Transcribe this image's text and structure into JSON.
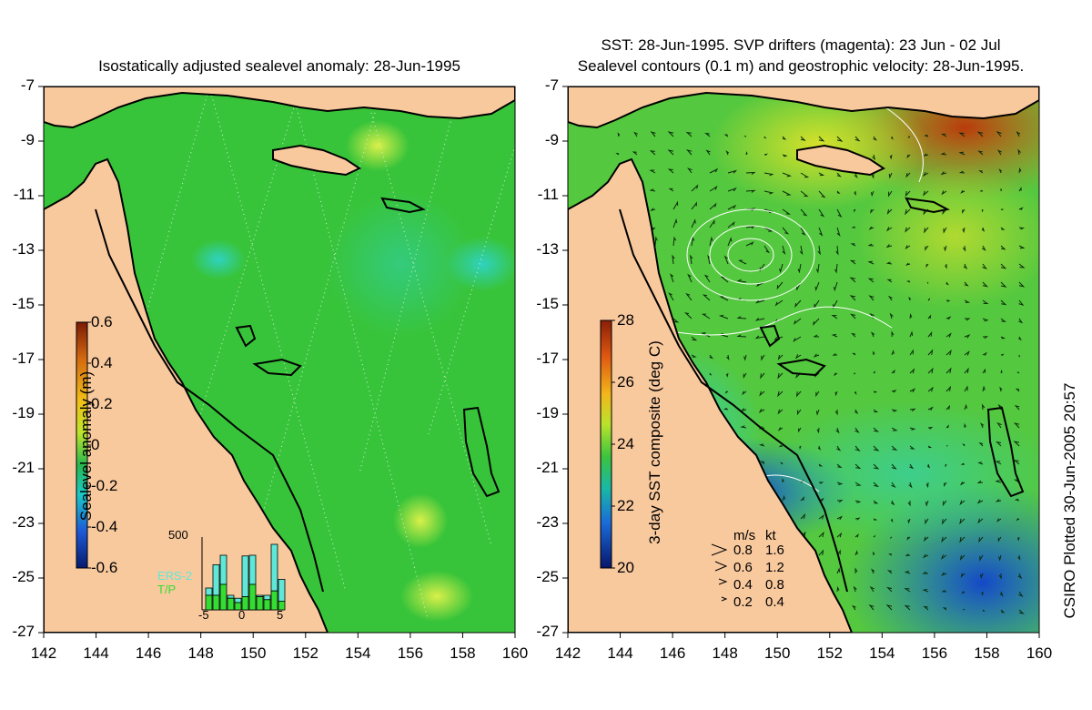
{
  "left_panel": {
    "title": "Isostatically adjusted sealevel anomaly: 28-Jun-1995",
    "colorbar": {
      "label": "Sealevel anomaly (m)",
      "ticks": [
        "0.6",
        "0.4",
        "0.2",
        "0",
        "-0.2",
        "-0.4",
        "-0.6"
      ]
    },
    "histogram": {
      "ymax_label": "500",
      "x_ticks": [
        "-5",
        "0",
        "5"
      ],
      "legend": [
        {
          "label": "ERS-2",
          "color": "#5fe8d8"
        },
        {
          "label": "T/P",
          "color": "#33dd33"
        }
      ],
      "bars": [
        {
          "day": -5,
          "ers": 0.1,
          "tp": 0.2
        },
        {
          "day": -4,
          "ers": 0.42,
          "tp": 0.2
        },
        {
          "day": -3,
          "ers": 0.4,
          "tp": 0.35
        },
        {
          "day": -2,
          "ers": 0.04,
          "tp": 0.16
        },
        {
          "day": -1,
          "ers": 0.06,
          "tp": 0.1
        },
        {
          "day": 0,
          "ers": 0.56,
          "tp": 0.18
        },
        {
          "day": 1,
          "ers": 0.4,
          "tp": 0.35
        },
        {
          "day": 2,
          "ers": 0.02,
          "tp": 0.18
        },
        {
          "day": 3,
          "ers": 0.06,
          "tp": 0.14
        },
        {
          "day": 4,
          "ers": 0.64,
          "tp": 0.26
        },
        {
          "day": 5,
          "ers": 0.3,
          "tp": 0.12
        }
      ]
    }
  },
  "right_panel": {
    "title_line1": "SST: 28-Jun-1995. SVP drifters (magenta): 23 Jun - 02 Jul",
    "title_line2": "Sealevel contours (0.1 m) and geostrophic velocity: 28-Jun-1995.",
    "colorbar": {
      "label": "3-day SST composite (deg C)",
      "ticks": [
        "28",
        "26",
        "24",
        "22",
        "20"
      ]
    },
    "velocity_legend": {
      "header_ms": "m/s",
      "header_kt": "kt",
      "rows": [
        {
          "ms": "0.8",
          "kt": "1.6"
        },
        {
          "ms": "0.6",
          "kt": "1.2"
        },
        {
          "ms": "0.4",
          "kt": "0.8"
        },
        {
          "ms": "0.2",
          "kt": "0.4"
        }
      ]
    }
  },
  "axes": {
    "y_labels": [
      "-7",
      "-9",
      "-11",
      "-13",
      "-15",
      "-17",
      "-19",
      "-21",
      "-23",
      "-25",
      "-27"
    ],
    "x_labels": [
      "142",
      "144",
      "146",
      "148",
      "150",
      "152",
      "154",
      "156",
      "158",
      "160"
    ]
  },
  "credit": "CSIRO Plotted 30-Jun-2005 20:57",
  "colors": {
    "land": "#f9c99e",
    "sla_ocean": "#38c43a",
    "sst_ocean": "#54c83f",
    "coast": "#000000"
  }
}
